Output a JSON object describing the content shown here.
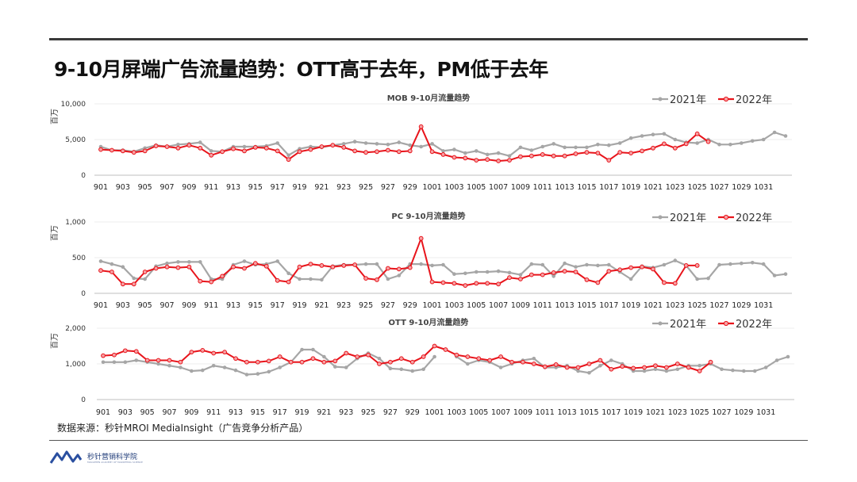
{
  "page": {
    "title": "9-10月屏端广告流量趋势：OTT高于去年，PM低于去年",
    "source": "数据来源：秒针MROI MediaInsight（广告竞争分析产品）",
    "logo_text": "秒针营销科学院",
    "logo_subtext": "MIAOZHEN ACADEMY OF MARKETING SCIENCE"
  },
  "colors": {
    "series_2021": "#a6a6a6",
    "series_2022": "#e8141b",
    "gridline": "#d9d9d9"
  },
  "chart_data": [
    {
      "type": "line",
      "title": "MOB  9-10月流量趋势",
      "ylabel": "百万",
      "ylim": [
        0,
        10000
      ],
      "yticks": [
        0,
        5000,
        10000
      ],
      "ytick_labels": [
        "0",
        "5,000",
        "10,000"
      ],
      "x_tick_labels": [
        "901",
        "903",
        "905",
        "907",
        "909",
        "911",
        "913",
        "915",
        "917",
        "919",
        "921",
        "923",
        "925",
        "927",
        "929",
        "1001",
        "1003",
        "1005",
        "1007",
        "1009",
        "1011",
        "1013",
        "1015",
        "1017",
        "1019",
        "1021",
        "1023",
        "1025",
        "1027",
        "1029",
        "1031"
      ],
      "legend": "top-right",
      "series": [
        {
          "name": "2021年",
          "values": [
            4000,
            3500,
            3500,
            3300,
            3800,
            4200,
            4000,
            4300,
            4400,
            4600,
            3400,
            3300,
            4000,
            4000,
            4000,
            4100,
            4500,
            2800,
            3700,
            4000,
            3900,
            4200,
            4400,
            4700,
            4500,
            4400,
            4300,
            4600,
            4200,
            4000,
            4400,
            3400,
            3600,
            3100,
            3400,
            2900,
            3100,
            2700,
            3900,
            3500,
            4000,
            4400,
            3900,
            3900,
            3900,
            4300,
            4200,
            4500,
            5200,
            5500,
            5700,
            5800,
            5000,
            4600,
            4500,
            5000,
            4300,
            4300,
            4500,
            4800,
            5000,
            6000,
            5500
          ]
        },
        {
          "name": "2022年",
          "values": [
            3600,
            3500,
            3400,
            3200,
            3400,
            4100,
            4000,
            3800,
            4200,
            3800,
            2800,
            3300,
            3700,
            3400,
            3900,
            3800,
            3400,
            2200,
            3300,
            3600,
            4000,
            4200,
            3900,
            3400,
            3200,
            3300,
            3500,
            3300,
            3400,
            6800,
            3300,
            2900,
            2500,
            2400,
            2100,
            2200,
            2000,
            2100,
            2600,
            2700,
            2900,
            2700,
            2700,
            3000,
            3200,
            3100,
            2100,
            3200,
            3100,
            3400,
            3800,
            4400,
            3800,
            4400,
            5800,
            4700
          ]
        }
      ]
    },
    {
      "type": "line",
      "title": "PC  9-10月流量趋势",
      "ylabel": "百万",
      "ylim": [
        0,
        1000
      ],
      "yticks": [
        0,
        500,
        1000
      ],
      "ytick_labels": [
        "0",
        "500",
        "1,000"
      ],
      "x_tick_labels": [
        "901",
        "903",
        "905",
        "907",
        "909",
        "911",
        "913",
        "915",
        "917",
        "919",
        "921",
        "923",
        "925",
        "927",
        "929",
        "1001",
        "1003",
        "1005",
        "1007",
        "1009",
        "1011",
        "1013",
        "1015",
        "1017",
        "1019",
        "1021",
        "1023",
        "1025",
        "1027",
        "1029",
        "1031"
      ],
      "legend": "top-right",
      "series": [
        {
          "name": "2021年",
          "values": [
            450,
            410,
            370,
            210,
            200,
            380,
            420,
            440,
            440,
            440,
            200,
            200,
            400,
            450,
            400,
            410,
            450,
            280,
            200,
            200,
            190,
            380,
            400,
            400,
            410,
            410,
            200,
            250,
            410,
            410,
            390,
            400,
            270,
            280,
            300,
            300,
            310,
            290,
            260,
            410,
            400,
            240,
            420,
            370,
            400,
            390,
            400,
            300,
            200,
            380,
            360,
            400,
            460,
            390,
            200,
            210,
            400,
            410,
            420,
            430,
            410,
            250,
            270
          ]
        },
        {
          "name": "2022年",
          "values": [
            320,
            300,
            130,
            130,
            300,
            350,
            370,
            360,
            370,
            170,
            160,
            240,
            370,
            350,
            420,
            380,
            180,
            160,
            370,
            410,
            390,
            370,
            390,
            400,
            210,
            190,
            350,
            340,
            360,
            770,
            160,
            150,
            140,
            110,
            140,
            140,
            130,
            220,
            200,
            260,
            260,
            290,
            310,
            300,
            190,
            150,
            310,
            330,
            360,
            370,
            340,
            150,
            140,
            390,
            390
          ]
        }
      ]
    },
    {
      "type": "line",
      "title": "OTT  9-10月流量趋势",
      "ylabel": "百万",
      "ylim": [
        0,
        2000
      ],
      "yticks": [
        0,
        1000,
        2000
      ],
      "ytick_labels": [
        "0",
        "1,000",
        "2,000"
      ],
      "x_tick_labels": [
        "901",
        "903",
        "905",
        "907",
        "909",
        "911",
        "913",
        "915",
        "917",
        "919",
        "921",
        "923",
        "925",
        "927",
        "929",
        "1001",
        "1003",
        "1005",
        "1007",
        "1009",
        "1011",
        "1013",
        "1015",
        "1017",
        "1019",
        "1021",
        "1023",
        "1025",
        "1027",
        "1029",
        "1031"
      ],
      "legend": "top-right",
      "series": [
        {
          "name": "2021年",
          "values": [
            1050,
            1050,
            1050,
            1100,
            1050,
            1000,
            950,
            900,
            800,
            820,
            950,
            900,
            820,
            700,
            720,
            780,
            900,
            1050,
            1400,
            1400,
            1200,
            920,
            900,
            1150,
            1300,
            1150,
            870,
            850,
            800,
            850,
            1200,
            null,
            1200,
            1000,
            1100,
            1050,
            900,
            1000,
            1100,
            1150,
            900,
            900,
            950,
            800,
            750,
            950,
            1100,
            1000,
            800,
            800,
            850,
            800,
            850,
            950,
            950,
            1000,
            850,
            820,
            800,
            800,
            900,
            1100,
            1200
          ]
        },
        {
          "name": "2022年",
          "values": [
            1230,
            1250,
            1370,
            1350,
            1100,
            1100,
            1100,
            1050,
            1330,
            1380,
            1300,
            1330,
            1150,
            1050,
            1050,
            1080,
            1200,
            1050,
            1050,
            1150,
            1050,
            1080,
            1300,
            1200,
            1250,
            1000,
            1050,
            1150,
            1050,
            1200,
            1500,
            1400,
            1250,
            1200,
            1150,
            1100,
            1200,
            1050,
            1050,
            1000,
            920,
            980,
            900,
            900,
            1000,
            1100,
            850,
            930,
            880,
            900,
            950,
            900,
            1000,
            900,
            800,
            1050
          ]
        }
      ]
    }
  ]
}
